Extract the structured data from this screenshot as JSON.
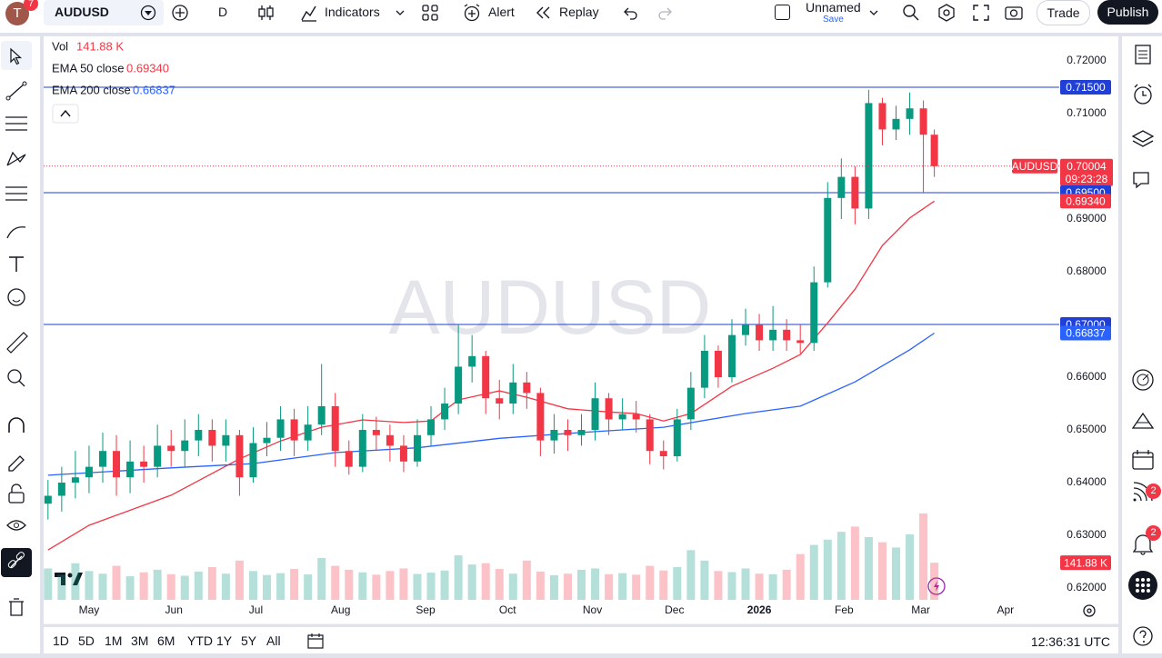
{
  "toolbar": {
    "symbol": "AUDUSD",
    "avatar": "T",
    "badge": "7",
    "interval": "D",
    "indicators": "Indicators",
    "alert": "Alert",
    "replay": "Replay",
    "layout_name": "Unnamed",
    "save": "Save",
    "trade": "Trade",
    "publish": "Publish"
  },
  "right_badges": [
    "2",
    "2"
  ],
  "bottom_bar": {
    "ranges": [
      "1D",
      "5D",
      "1M",
      "3M",
      "6M",
      "YTD",
      "1Y",
      "5Y",
      "All"
    ],
    "clock": "12:36:31 UTC"
  },
  "chart_data": {
    "type": "candlestick",
    "symbol": "AUDUSD",
    "countdown": "09:23:28",
    "up_color": "#089981",
    "down_color": "#f23645",
    "grid": false,
    "x": [
      -15,
      -10,
      -5,
      0,
      5,
      10,
      15,
      20,
      25,
      30,
      35,
      40,
      45,
      50,
      55,
      60,
      65,
      70,
      75,
      80,
      85,
      90,
      95,
      100,
      105,
      110,
      115,
      120,
      125,
      130,
      135,
      140,
      145,
      150,
      155,
      160,
      165,
      170,
      175,
      180,
      185,
      190,
      195,
      200,
      205,
      210,
      215,
      220,
      225,
      230,
      235,
      240,
      245,
      250,
      255,
      260,
      265,
      270,
      275,
      280,
      285,
      290,
      295,
      300,
      305,
      309
    ],
    "open": [
      0.636,
      0.6375,
      0.64,
      0.641,
      0.643,
      0.646,
      0.641,
      0.644,
      0.643,
      0.647,
      0.646,
      0.648,
      0.65,
      0.647,
      0.649,
      0.641,
      0.6475,
      0.6485,
      0.652,
      0.648,
      0.651,
      0.6545,
      0.646,
      0.643,
      0.65,
      0.649,
      0.647,
      0.644,
      0.649,
      0.652,
      0.655,
      0.662,
      0.664,
      0.656,
      0.655,
      0.659,
      0.657,
      0.648,
      0.65,
      0.649,
      0.65,
      0.656,
      0.652,
      0.653,
      0.652,
      0.646,
      0.645,
      0.652,
      0.658,
      0.665,
      0.66,
      0.668,
      0.67,
      0.667,
      0.669,
      0.667,
      0.6665,
      0.678,
      0.694,
      0.698,
      0.692,
      0.712,
      0.707,
      0.709,
      0.711,
      0.706
    ],
    "high": [
      0.6405,
      0.643,
      0.646,
      0.647,
      0.6495,
      0.649,
      0.648,
      0.647,
      0.651,
      0.65,
      0.652,
      0.653,
      0.652,
      0.652,
      0.65,
      0.6505,
      0.6515,
      0.6545,
      0.654,
      0.6545,
      0.6625,
      0.657,
      0.648,
      0.653,
      0.6525,
      0.651,
      0.649,
      0.652,
      0.6545,
      0.658,
      0.67,
      0.668,
      0.665,
      0.6595,
      0.6625,
      0.661,
      0.658,
      0.653,
      0.652,
      0.653,
      0.659,
      0.657,
      0.656,
      0.6555,
      0.653,
      0.648,
      0.654,
      0.661,
      0.668,
      0.666,
      0.671,
      0.673,
      0.672,
      0.6735,
      0.671,
      0.67,
      0.681,
      0.697,
      0.7015,
      0.7,
      0.7145,
      0.713,
      0.7115,
      0.714,
      0.7125,
      0.707
    ],
    "low": [
      0.633,
      0.6345,
      0.637,
      0.638,
      0.64,
      0.6375,
      0.638,
      0.64,
      0.641,
      0.643,
      0.643,
      0.645,
      0.644,
      0.644,
      0.6375,
      0.64,
      0.645,
      0.646,
      0.645,
      0.646,
      0.649,
      0.643,
      0.6415,
      0.642,
      0.646,
      0.644,
      0.642,
      0.643,
      0.647,
      0.65,
      0.653,
      0.659,
      0.653,
      0.652,
      0.653,
      0.654,
      0.645,
      0.6455,
      0.646,
      0.647,
      0.648,
      0.649,
      0.65,
      0.6495,
      0.6435,
      0.6425,
      0.644,
      0.65,
      0.656,
      0.658,
      0.659,
      0.666,
      0.665,
      0.665,
      0.665,
      0.6645,
      0.665,
      0.677,
      0.69,
      0.689,
      0.69,
      0.704,
      0.705,
      0.706,
      0.695,
      0.698
    ],
    "close": [
      0.6375,
      0.64,
      0.641,
      0.643,
      0.646,
      0.641,
      0.644,
      0.643,
      0.647,
      0.646,
      0.648,
      0.65,
      0.647,
      0.649,
      0.641,
      0.6475,
      0.6485,
      0.652,
      0.648,
      0.651,
      0.6545,
      0.646,
      0.643,
      0.65,
      0.649,
      0.647,
      0.644,
      0.649,
      0.652,
      0.655,
      0.662,
      0.664,
      0.656,
      0.655,
      0.659,
      0.657,
      0.648,
      0.65,
      0.649,
      0.65,
      0.656,
      0.652,
      0.653,
      0.652,
      0.646,
      0.645,
      0.652,
      0.658,
      0.665,
      0.66,
      0.668,
      0.67,
      0.667,
      0.669,
      0.667,
      0.6665,
      0.678,
      0.694,
      0.698,
      0.692,
      0.712,
      0.707,
      0.709,
      0.711,
      0.706,
      0.70004
    ],
    "volume": {
      "name": "Vol",
      "label": "141.88 K",
      "values": [
        120000,
        95000,
        140000,
        110000,
        100000,
        130000,
        90000,
        105000,
        115000,
        98000,
        92000,
        108000,
        125000,
        100000,
        150000,
        110000,
        95000,
        102000,
        118000,
        97000,
        160000,
        130000,
        115000,
        105000,
        96000,
        110000,
        120000,
        99000,
        104000,
        112000,
        170000,
        135000,
        140000,
        118000,
        100000,
        150000,
        108000,
        94000,
        100000,
        115000,
        120000,
        98000,
        102000,
        96000,
        130000,
        112000,
        125000,
        190000,
        150000,
        110000,
        106000,
        120000,
        100000,
        98000,
        115000,
        175000,
        210000,
        230000,
        260000,
        280000,
        240000,
        220000,
        200000,
        250000,
        330000,
        141880
      ]
    },
    "series": [
      {
        "name": "EMA 50 close",
        "color": "#f23645",
        "value_label": "0.69340",
        "x": [
          -15,
          0,
          30,
          55,
          70,
          85,
          100,
          115,
          125,
          135,
          150,
          160,
          175,
          190,
          200,
          210,
          220,
          235,
          250,
          260,
          270,
          280,
          290,
          300,
          309
        ],
        "values": [
          0.6272,
          0.6319,
          0.6376,
          0.6445,
          0.6479,
          0.6505,
          0.6519,
          0.6514,
          0.6517,
          0.6557,
          0.6574,
          0.6562,
          0.654,
          0.6534,
          0.6531,
          0.6517,
          0.6531,
          0.6583,
          0.6617,
          0.6643,
          0.6703,
          0.6767,
          0.685,
          0.6902,
          0.6934
        ]
      },
      {
        "name": "EMA 200 close",
        "color": "#2962ff",
        "value_label": "0.66837",
        "x": [
          -15,
          30,
          60,
          90,
          120,
          150,
          180,
          210,
          240,
          260,
          280,
          300,
          309
        ],
        "values": [
          0.6414,
          0.6428,
          0.6436,
          0.6457,
          0.6466,
          0.6484,
          0.6495,
          0.6505,
          0.6531,
          0.6545,
          0.6591,
          0.6652,
          0.66837
        ]
      }
    ],
    "hline_color": "#1f3fd6",
    "hlines": [
      {
        "value": 0.715,
        "label": "0.71500"
      },
      {
        "value": 0.695,
        "label": "0.69500"
      },
      {
        "value": 0.67,
        "label": "0.67000"
      }
    ],
    "xlim": [
      -16.6,
      353
    ],
    "xticks": [
      {
        "value": 0,
        "label": "May"
      },
      {
        "value": 31,
        "label": "Jun"
      },
      {
        "value": 61,
        "label": "Jul"
      },
      {
        "value": 92,
        "label": "Aug"
      },
      {
        "value": 123,
        "label": "Sep"
      },
      {
        "value": 153,
        "label": "Oct"
      },
      {
        "value": 184,
        "label": "Nov"
      },
      {
        "value": 214,
        "label": "Dec"
      },
      {
        "value": 245,
        "label": "2026"
      },
      {
        "value": 276,
        "label": "Feb"
      },
      {
        "value": 304,
        "label": "Mar"
      },
      {
        "value": 335,
        "label": "Apr"
      }
    ],
    "ylim": [
      0.61776,
      0.72466
    ],
    "yticks": [
      {
        "value": 0.62,
        "label": "0.62000"
      },
      {
        "value": 0.63,
        "label": "0.63000"
      },
      {
        "value": 0.64,
        "label": "0.64000"
      },
      {
        "value": 0.65,
        "label": "0.65000"
      },
      {
        "value": 0.66,
        "label": "0.66000"
      },
      {
        "value": 0.67,
        "label": "0.67000"
      },
      {
        "value": 0.68,
        "label": "0.68000"
      },
      {
        "value": 0.69,
        "label": "0.69000"
      },
      {
        "value": 0.7,
        "label": "0.70000"
      },
      {
        "value": 0.71,
        "label": "0.71000"
      },
      {
        "value": 0.72,
        "label": "0.72000"
      }
    ]
  }
}
